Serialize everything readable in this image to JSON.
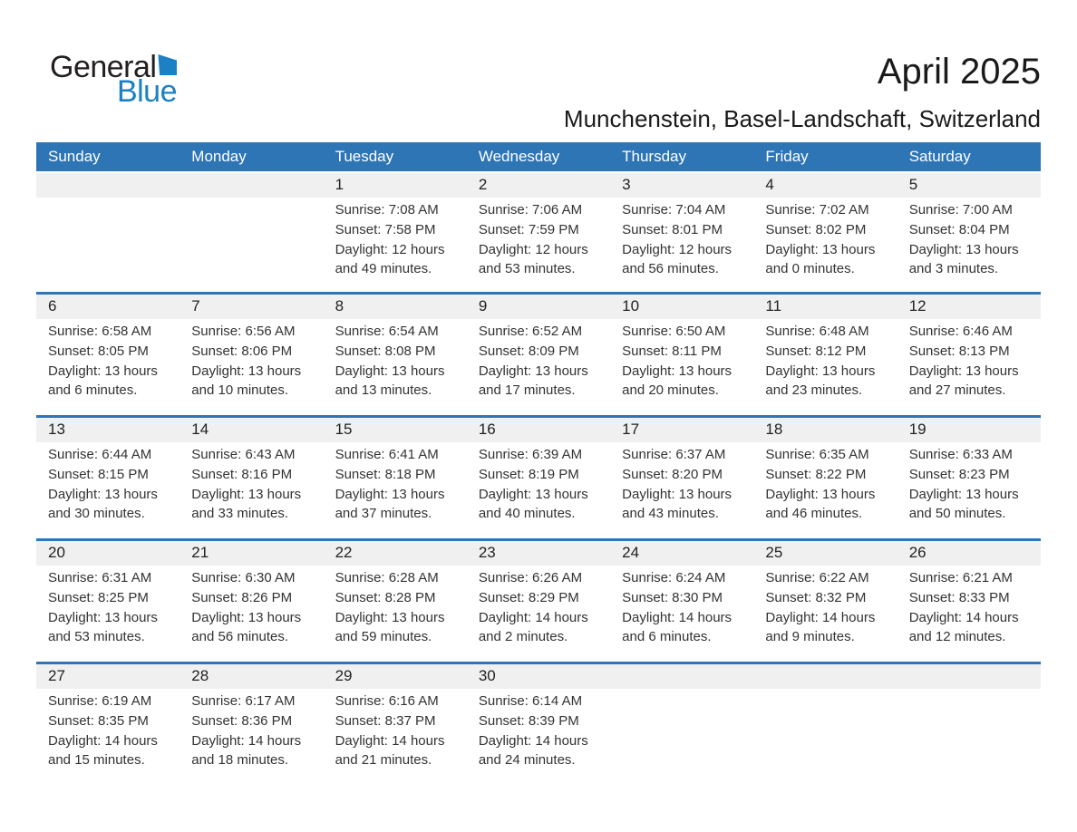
{
  "logo": {
    "general": "General",
    "blue": "Blue"
  },
  "header": {
    "title": "April 2025",
    "subtitle": "Munchenstein, Basel-Landschaft, Switzerland"
  },
  "colors": {
    "header_bg": "#2e75b6",
    "divider": "#2e75b6",
    "strip_bg": "#f0f0f0",
    "logo_blue": "#1b80c4"
  },
  "weekday_headers": [
    "Sunday",
    "Monday",
    "Tuesday",
    "Wednesday",
    "Thursday",
    "Friday",
    "Saturday"
  ],
  "weeks": [
    [
      null,
      null,
      {
        "day": "1",
        "lines": [
          "Sunrise: 7:08 AM",
          "Sunset: 7:58 PM",
          "Daylight: 12 hours",
          "and 49 minutes."
        ]
      },
      {
        "day": "2",
        "lines": [
          "Sunrise: 7:06 AM",
          "Sunset: 7:59 PM",
          "Daylight: 12 hours",
          "and 53 minutes."
        ]
      },
      {
        "day": "3",
        "lines": [
          "Sunrise: 7:04 AM",
          "Sunset: 8:01 PM",
          "Daylight: 12 hours",
          "and 56 minutes."
        ]
      },
      {
        "day": "4",
        "lines": [
          "Sunrise: 7:02 AM",
          "Sunset: 8:02 PM",
          "Daylight: 13 hours",
          "and 0 minutes."
        ]
      },
      {
        "day": "5",
        "lines": [
          "Sunrise: 7:00 AM",
          "Sunset: 8:04 PM",
          "Daylight: 13 hours",
          "and 3 minutes."
        ]
      }
    ],
    [
      {
        "day": "6",
        "lines": [
          "Sunrise: 6:58 AM",
          "Sunset: 8:05 PM",
          "Daylight: 13 hours",
          "and 6 minutes."
        ]
      },
      {
        "day": "7",
        "lines": [
          "Sunrise: 6:56 AM",
          "Sunset: 8:06 PM",
          "Daylight: 13 hours",
          "and 10 minutes."
        ]
      },
      {
        "day": "8",
        "lines": [
          "Sunrise: 6:54 AM",
          "Sunset: 8:08 PM",
          "Daylight: 13 hours",
          "and 13 minutes."
        ]
      },
      {
        "day": "9",
        "lines": [
          "Sunrise: 6:52 AM",
          "Sunset: 8:09 PM",
          "Daylight: 13 hours",
          "and 17 minutes."
        ]
      },
      {
        "day": "10",
        "lines": [
          "Sunrise: 6:50 AM",
          "Sunset: 8:11 PM",
          "Daylight: 13 hours",
          "and 20 minutes."
        ]
      },
      {
        "day": "11",
        "lines": [
          "Sunrise: 6:48 AM",
          "Sunset: 8:12 PM",
          "Daylight: 13 hours",
          "and 23 minutes."
        ]
      },
      {
        "day": "12",
        "lines": [
          "Sunrise: 6:46 AM",
          "Sunset: 8:13 PM",
          "Daylight: 13 hours",
          "and 27 minutes."
        ]
      }
    ],
    [
      {
        "day": "13",
        "lines": [
          "Sunrise: 6:44 AM",
          "Sunset: 8:15 PM",
          "Daylight: 13 hours",
          "and 30 minutes."
        ]
      },
      {
        "day": "14",
        "lines": [
          "Sunrise: 6:43 AM",
          "Sunset: 8:16 PM",
          "Daylight: 13 hours",
          "and 33 minutes."
        ]
      },
      {
        "day": "15",
        "lines": [
          "Sunrise: 6:41 AM",
          "Sunset: 8:18 PM",
          "Daylight: 13 hours",
          "and 37 minutes."
        ]
      },
      {
        "day": "16",
        "lines": [
          "Sunrise: 6:39 AM",
          "Sunset: 8:19 PM",
          "Daylight: 13 hours",
          "and 40 minutes."
        ]
      },
      {
        "day": "17",
        "lines": [
          "Sunrise: 6:37 AM",
          "Sunset: 8:20 PM",
          "Daylight: 13 hours",
          "and 43 minutes."
        ]
      },
      {
        "day": "18",
        "lines": [
          "Sunrise: 6:35 AM",
          "Sunset: 8:22 PM",
          "Daylight: 13 hours",
          "and 46 minutes."
        ]
      },
      {
        "day": "19",
        "lines": [
          "Sunrise: 6:33 AM",
          "Sunset: 8:23 PM",
          "Daylight: 13 hours",
          "and 50 minutes."
        ]
      }
    ],
    [
      {
        "day": "20",
        "lines": [
          "Sunrise: 6:31 AM",
          "Sunset: 8:25 PM",
          "Daylight: 13 hours",
          "and 53 minutes."
        ]
      },
      {
        "day": "21",
        "lines": [
          "Sunrise: 6:30 AM",
          "Sunset: 8:26 PM",
          "Daylight: 13 hours",
          "and 56 minutes."
        ]
      },
      {
        "day": "22",
        "lines": [
          "Sunrise: 6:28 AM",
          "Sunset: 8:28 PM",
          "Daylight: 13 hours",
          "and 59 minutes."
        ]
      },
      {
        "day": "23",
        "lines": [
          "Sunrise: 6:26 AM",
          "Sunset: 8:29 PM",
          "Daylight: 14 hours",
          "and 2 minutes."
        ]
      },
      {
        "day": "24",
        "lines": [
          "Sunrise: 6:24 AM",
          "Sunset: 8:30 PM",
          "Daylight: 14 hours",
          "and 6 minutes."
        ]
      },
      {
        "day": "25",
        "lines": [
          "Sunrise: 6:22 AM",
          "Sunset: 8:32 PM",
          "Daylight: 14 hours",
          "and 9 minutes."
        ]
      },
      {
        "day": "26",
        "lines": [
          "Sunrise: 6:21 AM",
          "Sunset: 8:33 PM",
          "Daylight: 14 hours",
          "and 12 minutes."
        ]
      }
    ],
    [
      {
        "day": "27",
        "lines": [
          "Sunrise: 6:19 AM",
          "Sunset: 8:35 PM",
          "Daylight: 14 hours",
          "and 15 minutes."
        ]
      },
      {
        "day": "28",
        "lines": [
          "Sunrise: 6:17 AM",
          "Sunset: 8:36 PM",
          "Daylight: 14 hours",
          "and 18 minutes."
        ]
      },
      {
        "day": "29",
        "lines": [
          "Sunrise: 6:16 AM",
          "Sunset: 8:37 PM",
          "Daylight: 14 hours",
          "and 21 minutes."
        ]
      },
      {
        "day": "30",
        "lines": [
          "Sunrise: 6:14 AM",
          "Sunset: 8:39 PM",
          "Daylight: 14 hours",
          "and 24 minutes."
        ]
      },
      null,
      null,
      null
    ]
  ]
}
